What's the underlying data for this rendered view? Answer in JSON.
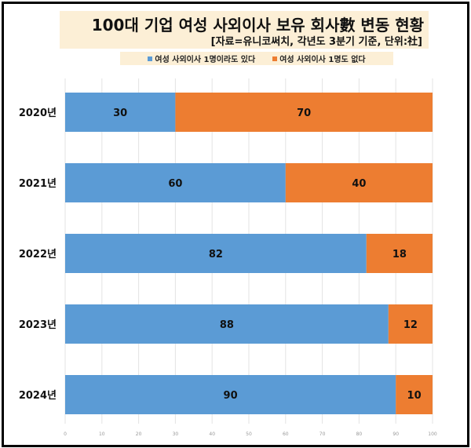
{
  "chart_data": {
    "type": "bar",
    "orientation": "horizontal",
    "stacked": true,
    "title": "100대 기업 여성 사외이사 보유 회사數 변동 현황",
    "subtitle": "[자료=유니코써치, 각년도 3분기 기준, 단위:社]",
    "categories": [
      "2020년",
      "2021년",
      "2022년",
      "2023년",
      "2024년"
    ],
    "series": [
      {
        "name": "여성 사외이사 1명이라도 있다",
        "color": "#5b9bd5",
        "values": [
          30,
          60,
          82,
          88,
          90
        ]
      },
      {
        "name": "여성 사외이사 1명도 없다",
        "color": "#ed7d31",
        "values": [
          70,
          40,
          18,
          12,
          10
        ]
      }
    ],
    "xlim": [
      0,
      100
    ],
    "xticks": [
      0,
      10,
      20,
      30,
      40,
      50,
      60,
      70,
      80,
      90,
      100
    ],
    "grid": true,
    "legend_position": "top",
    "data_labels": true
  }
}
